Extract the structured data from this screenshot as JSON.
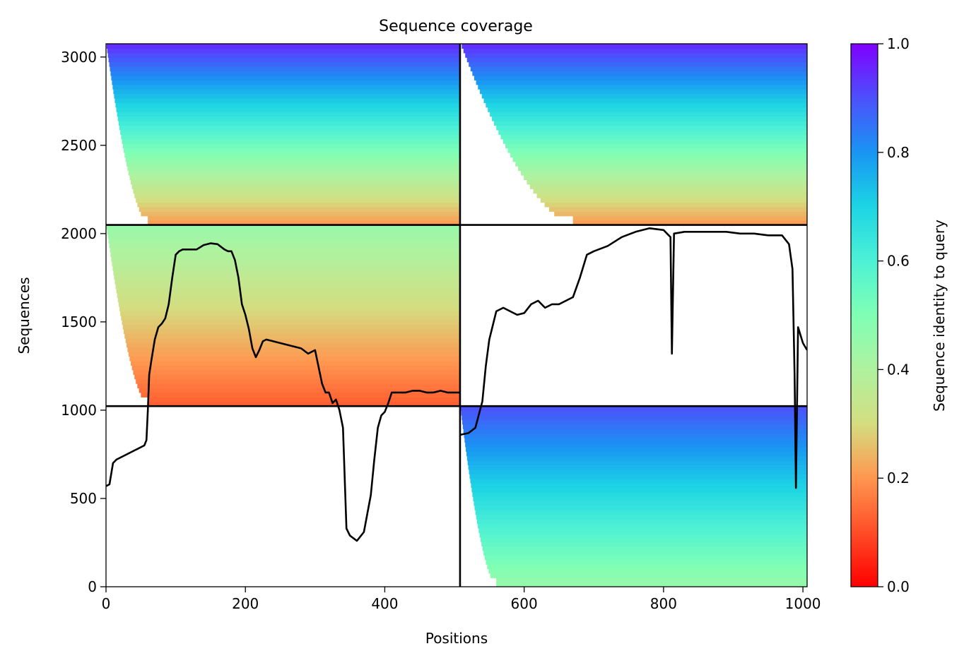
{
  "chart_data": {
    "type": "heatmap",
    "title": "Sequence coverage",
    "xlabel": "Positions",
    "ylabel": "Sequences",
    "colorbar_label": "Sequence identity to query",
    "xlim": [
      0,
      1006
    ],
    "ylim": [
      0,
      3075
    ],
    "x_ticks": [
      0,
      200,
      400,
      600,
      800,
      1000
    ],
    "y_ticks": [
      0,
      500,
      1000,
      1500,
      2000,
      2500,
      3000
    ],
    "colorbar_ticks": [
      0.0,
      0.2,
      0.4,
      0.6,
      0.8,
      1.0
    ],
    "colorbar_tick_labels": [
      "0.0",
      "0.2",
      "0.4",
      "0.6",
      "0.8",
      "1.0"
    ],
    "colormap": "rainbow_r",
    "block_boundaries": {
      "x": [
        508
      ],
      "y": [
        1023,
        2049
      ]
    },
    "blocks": [
      {
        "x_range": [
          0,
          508
        ],
        "y_range": [
          2049,
          3075
        ],
        "identity_top": 0.95,
        "identity_bottom": 0.2,
        "coverage_start": 60
      },
      {
        "x_range": [
          508,
          1006
        ],
        "y_range": [
          2049,
          3075
        ],
        "identity_top": 0.95,
        "identity_bottom": 0.2,
        "coverage_start": 670
      },
      {
        "x_range": [
          0,
          508
        ],
        "y_range": [
          1023,
          2049
        ],
        "identity_top": 0.45,
        "identity_bottom": 0.12,
        "coverage_start": 60
      },
      {
        "x_range": [
          508,
          1006
        ],
        "y_range": [
          1023,
          2049
        ],
        "identity_top": null,
        "identity_bottom": null,
        "coverage_start": null
      },
      {
        "x_range": [
          0,
          508
        ],
        "y_range": [
          0,
          1023
        ],
        "identity_top": null,
        "identity_bottom": null,
        "coverage_start": null
      },
      {
        "x_range": [
          508,
          1006
        ],
        "y_range": [
          0,
          1023
        ],
        "identity_top": 0.9,
        "identity_bottom": 0.45,
        "coverage_start": 560
      }
    ],
    "coverage_line": {
      "x": [
        0,
        5,
        10,
        15,
        20,
        30,
        40,
        50,
        55,
        58,
        60,
        62,
        65,
        70,
        75,
        80,
        85,
        90,
        95,
        100,
        105,
        110,
        120,
        130,
        140,
        150,
        160,
        170,
        175,
        180,
        185,
        190,
        195,
        200,
        205,
        210,
        215,
        220,
        225,
        230,
        240,
        250,
        260,
        270,
        280,
        290,
        300,
        310,
        315,
        320,
        325,
        330,
        335,
        340,
        345,
        350,
        360,
        370,
        380,
        385,
        390,
        395,
        400,
        405,
        410,
        420,
        430,
        440,
        450,
        460,
        470,
        480,
        490,
        500,
        508
      ],
      "y": [
        570,
        580,
        700,
        720,
        730,
        750,
        770,
        790,
        800,
        830,
        1000,
        1200,
        1280,
        1400,
        1470,
        1490,
        1520,
        1600,
        1750,
        1880,
        1900,
        1910,
        1910,
        1910,
        1935,
        1945,
        1940,
        1910,
        1900,
        1900,
        1850,
        1750,
        1600,
        1540,
        1460,
        1350,
        1300,
        1340,
        1390,
        1400,
        1390,
        1380,
        1370,
        1360,
        1350,
        1320,
        1340,
        1150,
        1100,
        1100,
        1040,
        1060,
        1000,
        900,
        330,
        290,
        260,
        310,
        520,
        720,
        900,
        970,
        990,
        1040,
        1100,
        1100,
        1100,
        1110,
        1110,
        1100,
        1100,
        1110,
        1100,
        1100,
        1100
      ]
    },
    "coverage_line_right": {
      "x": [
        508,
        520,
        530,
        540,
        545,
        550,
        560,
        570,
        580,
        590,
        600,
        610,
        620,
        630,
        640,
        650,
        660,
        670,
        680,
        690,
        700,
        720,
        740,
        760,
        780,
        800,
        810,
        812,
        815,
        830,
        850,
        870,
        890,
        910,
        930,
        950,
        970,
        980,
        985,
        988,
        990,
        993,
        1000,
        1006
      ],
      "y": [
        860,
        870,
        900,
        1050,
        1250,
        1400,
        1560,
        1580,
        1560,
        1540,
        1550,
        1600,
        1620,
        1580,
        1600,
        1600,
        1620,
        1640,
        1750,
        1880,
        1900,
        1930,
        1980,
        2010,
        2030,
        2020,
        1980,
        1320,
        2000,
        2010,
        2010,
        2010,
        2010,
        2000,
        2000,
        1990,
        1990,
        1940,
        1800,
        1200,
        560,
        1470,
        1380,
        1340
      ]
    }
  }
}
